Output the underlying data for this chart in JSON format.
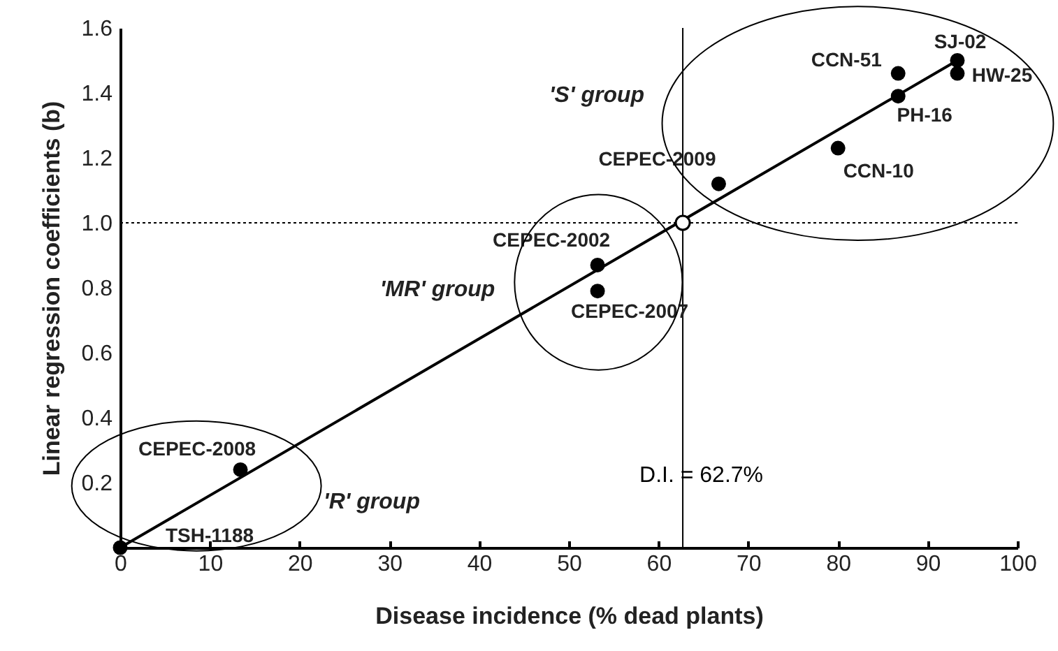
{
  "chart_data": {
    "type": "scatter",
    "xlabel": "Disease incidence (% dead plants)",
    "ylabel": "Linear regression coefficients (b)",
    "x": [
      0,
      13.4,
      53.2,
      53.2,
      66.7,
      80.0,
      86.7,
      86.7,
      93.3,
      93.3
    ],
    "series": [
      {
        "color": "#000000",
        "marker": "circle",
        "values": [
          0,
          0.24,
          0.87,
          0.79,
          1.12,
          1.23,
          1.39,
          1.46,
          1.5,
          1.46
        ]
      },
      {
        "type": "line",
        "color": "#000000",
        "x": [
          0,
          93.3
        ],
        "values": [
          0,
          1.5
        ]
      },
      {
        "type": "scatter",
        "color": "#000000",
        "marker": "circle",
        "x": [
          62.7
        ],
        "values": [
          1.0
        ]
      }
    ],
    "annotations": [
      {
        "text": "TSH-1188",
        "x": 0,
        "y": 0
      },
      {
        "text": "CEPEC-2008",
        "x": 13.4,
        "y": 0.24
      },
      {
        "text": "CEPEC-2002",
        "x": 53.2,
        "y": 0.87
      },
      {
        "text": "CEPEC-2007",
        "x": 53.2,
        "y": 0.79
      },
      {
        "text": "CEPEC-2009",
        "x": 66.7,
        "y": 1.12
      },
      {
        "text": "CCN-10",
        "x": 80.0,
        "y": 1.23
      },
      {
        "text": "PH-16",
        "x": 86.7,
        "y": 1.39
      },
      {
        "text": "CCN-51",
        "x": 86.7,
        "y": 1.46
      },
      {
        "text": "SJ-02",
        "x": 93.3,
        "y": 1.5
      },
      {
        "text": "HW-25",
        "x": 93.3,
        "y": 1.46
      },
      "'R' group",
      "'MR' group",
      "'S' group"
    ],
    "ref_lines": [
      {
        "axis": "y",
        "value": 1.0,
        "line_style": "dotted"
      },
      {
        "axis": "x",
        "value": 62.7,
        "label": "D.I. = 62.7%",
        "line_style": "solid"
      }
    ],
    "xlim": [
      0,
      100
    ],
    "xticks": [
      0,
      10,
      20,
      30,
      40,
      50,
      60,
      70,
      80,
      90,
      100
    ],
    "ylim": [
      0,
      1.6
    ],
    "yticks": [
      {
        "value": 0.2,
        "label": "0.2"
      },
      {
        "value": 0.4,
        "label": "0.4"
      },
      {
        "value": 0.6,
        "label": "0.6"
      },
      {
        "value": 0.8,
        "label": "0.8"
      },
      {
        "value": 1.0,
        "label": "1.0"
      },
      {
        "value": 1.2,
        "label": "1.2"
      },
      {
        "value": 1.4,
        "label": "1.4"
      },
      {
        "value": 1.6,
        "label": "1.6"
      }
    ],
    "grid": false
  }
}
